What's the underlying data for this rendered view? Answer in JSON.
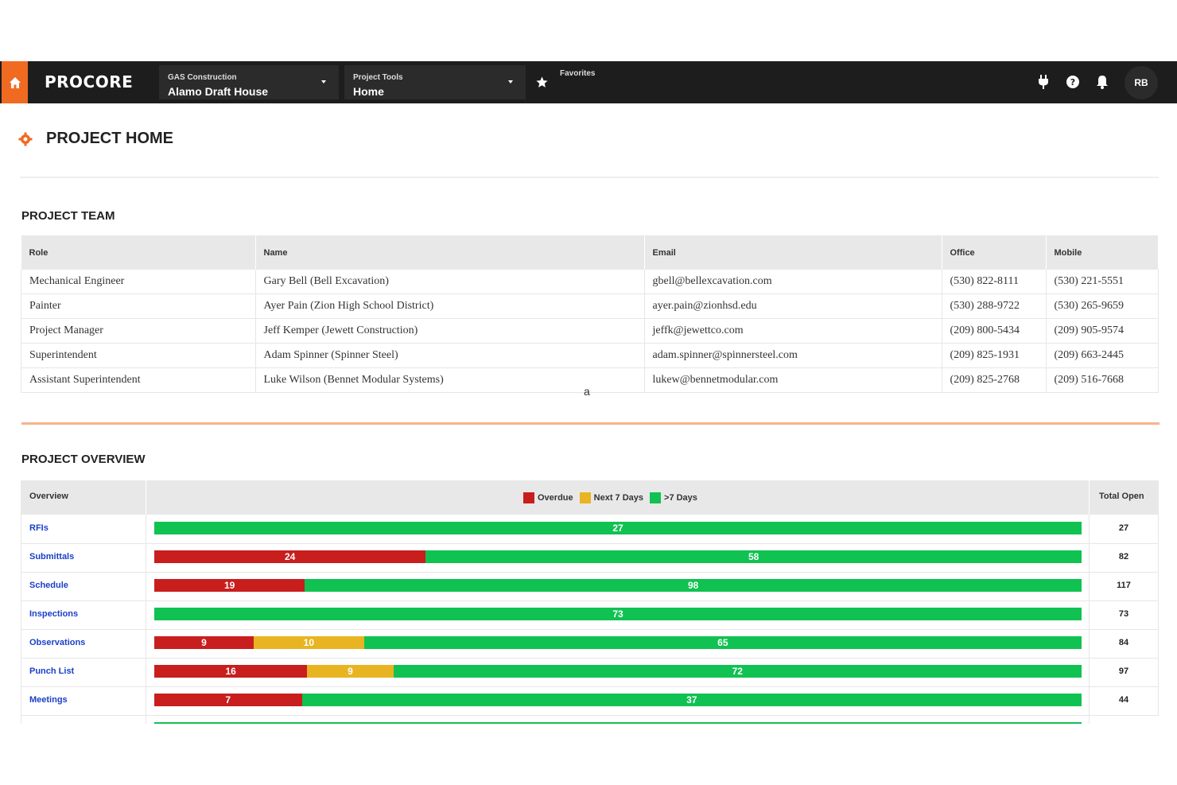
{
  "nav": {
    "logo": "PROCORE",
    "company_label": "GAS Construction",
    "project_name": "Alamo Draft House",
    "tools_label": "Project Tools",
    "tool_name": "Home",
    "favorites_label": "Favorites",
    "avatar_initials": "RB",
    "accent_color": "#f06a22"
  },
  "page": {
    "title": "PROJECT HOME",
    "stray_char": "a"
  },
  "team": {
    "title": "PROJECT TEAM",
    "columns": [
      "Role",
      "Name",
      "Email",
      "Office",
      "Mobile"
    ],
    "rows": [
      {
        "role": "Mechanical Engineer",
        "name": "Gary Bell (Bell Excavation)",
        "email": "gbell@bellexcavation.com",
        "office": "(530) 822-8111",
        "mobile": "(530) 221-5551"
      },
      {
        "role": "Painter",
        "name": "Ayer Pain (Zion High School District)",
        "email": "ayer.pain@zionhsd.edu",
        "office": "(530) 288-9722",
        "mobile": "(530) 265-9659"
      },
      {
        "role": "Project Manager",
        "name": "Jeff Kemper (Jewett Construction)",
        "email": "jeffk@jewettco.com",
        "office": "(209) 800-5434",
        "mobile": "(209) 905-9574"
      },
      {
        "role": "Superintendent",
        "name": "Adam Spinner (Spinner Steel)",
        "email": "adam.spinner@spinnersteel.com",
        "office": "(209) 825-1931",
        "mobile": "(209) 663-2445"
      },
      {
        "role": "Assistant Superintendent",
        "name": "Luke Wilson (Bennet Modular Systems)",
        "email": "lukew@bennetmodular.com",
        "office": "(209) 825-2768",
        "mobile": "(209) 516-7668"
      }
    ]
  },
  "overview": {
    "title": "PROJECT OVERVIEW",
    "col_overview": "Overview",
    "col_total": "Total Open",
    "legend": [
      {
        "label": "Overdue",
        "color": "#c81e1e"
      },
      {
        "label": "Next 7 Days",
        "color": "#e9b422"
      },
      {
        "label": ">7 Days",
        "color": "#10c251"
      }
    ],
    "rows": [
      {
        "label": "RFIs",
        "overdue": 0,
        "next7": 0,
        "later": 27,
        "total": "27"
      },
      {
        "label": "Submittals",
        "overdue": 24,
        "next7": 0,
        "later": 58,
        "total": "82"
      },
      {
        "label": "Schedule",
        "overdue": 19,
        "next7": 0,
        "later": 98,
        "total": "117"
      },
      {
        "label": "Inspections",
        "overdue": 0,
        "next7": 0,
        "later": 73,
        "total": "73"
      },
      {
        "label": "Observations",
        "overdue": 9,
        "next7": 10,
        "later": 65,
        "total": "84"
      },
      {
        "label": "Punch List",
        "overdue": 16,
        "next7": 9,
        "later": 72,
        "total": "97"
      },
      {
        "label": "Meetings",
        "overdue": 7,
        "next7": 0,
        "later": 37,
        "total": "44"
      }
    ]
  }
}
